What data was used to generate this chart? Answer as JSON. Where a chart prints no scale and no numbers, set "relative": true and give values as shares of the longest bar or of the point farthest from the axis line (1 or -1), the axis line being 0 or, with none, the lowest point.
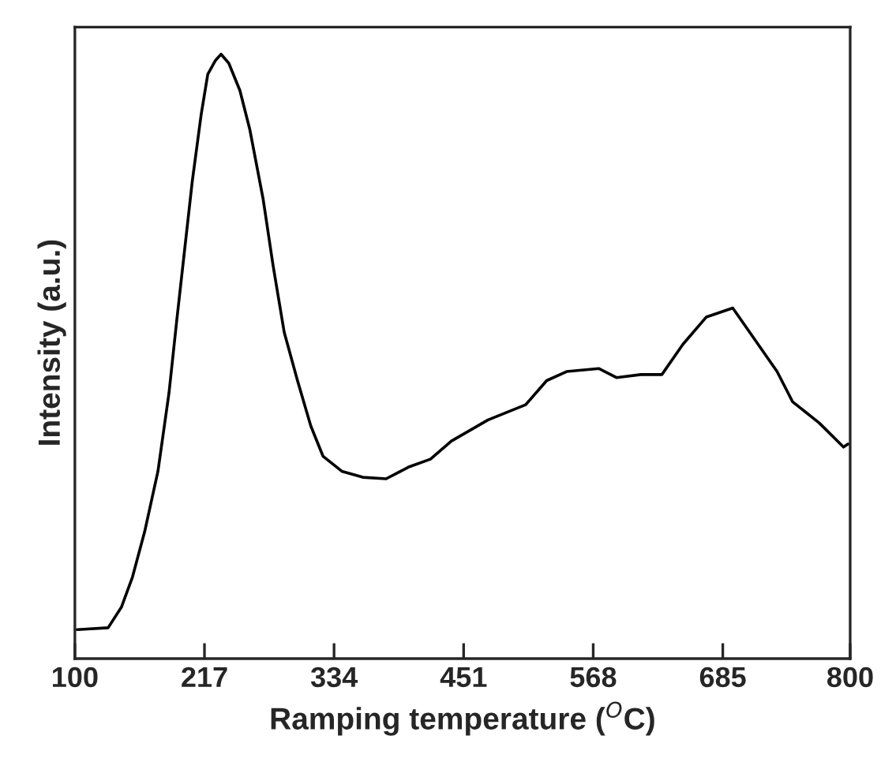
{
  "chart_data": {
    "type": "line",
    "relative": true,
    "xlabel": "Ramping temperature ($^{O}$C)",
    "ylabel": "Intensity (a.u.)",
    "xlim": [
      100,
      800
    ],
    "xticks": [
      100,
      217,
      334,
      451,
      568,
      685,
      800
    ],
    "tick_labels": "x",
    "grid": false,
    "legend": false,
    "marker": "none",
    "line_style": "solid",
    "x": [
      102,
      130,
      142,
      152,
      163,
      175,
      185,
      192,
      199,
      206,
      214,
      220,
      227,
      232,
      239,
      249,
      258,
      270,
      279,
      289,
      301,
      313,
      324,
      341,
      360,
      381,
      402,
      421,
      440,
      473,
      507,
      526,
      544,
      573,
      589,
      611,
      630,
      649,
      670,
      694,
      715,
      734,
      748,
      772,
      794,
      798
    ],
    "series": [
      {
        "color": "#000000",
        "values": [
          0.048,
          0.051,
          0.085,
          0.135,
          0.21,
          0.31,
          0.44,
          0.56,
          0.675,
          0.79,
          0.9,
          0.967,
          0.99,
          1.0,
          0.985,
          0.94,
          0.875,
          0.76,
          0.65,
          0.54,
          0.46,
          0.385,
          0.335,
          0.31,
          0.3,
          0.2975,
          0.3175,
          0.33,
          0.36,
          0.395,
          0.42,
          0.46,
          0.475,
          0.48,
          0.465,
          0.47,
          0.47,
          0.52,
          0.565,
          0.58,
          0.525,
          0.475,
          0.425,
          0.39,
          0.35,
          0.355
        ]
      }
    ]
  }
}
